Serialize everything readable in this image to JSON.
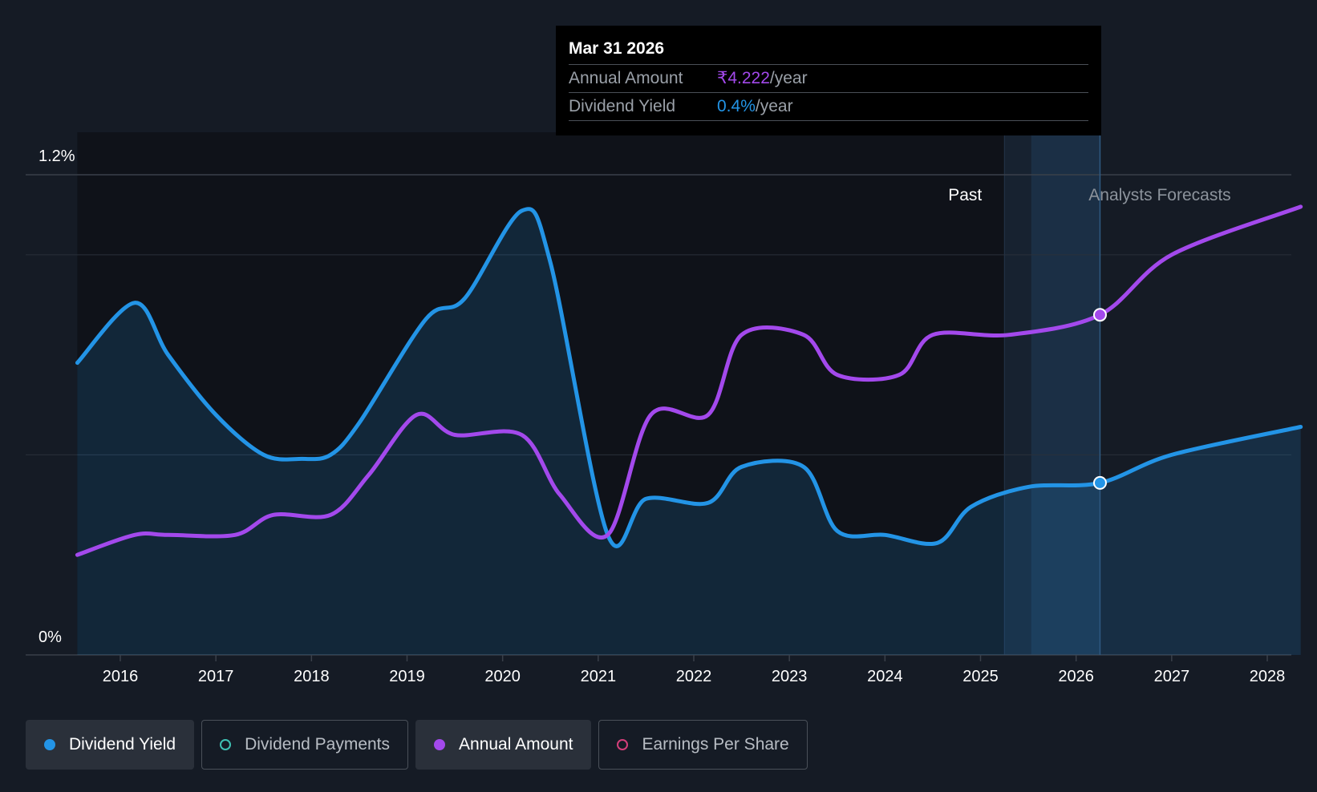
{
  "chart_data": {
    "type": "line",
    "x_range": [
      2015.1,
      2028.35
    ],
    "ylim": [
      0,
      1.2
    ],
    "y_axis_labels": [
      "1.2%",
      "0%"
    ],
    "x_ticks": [
      "2016",
      "2017",
      "2018",
      "2019",
      "2020",
      "2021",
      "2022",
      "2023",
      "2024",
      "2025",
      "2026",
      "2027",
      "2028"
    ],
    "regions": {
      "past_label": "Past",
      "forecast_label": "Analysts Forecasts",
      "past_end": 2025.25,
      "forecast_start": 2025.53,
      "cursor": 2026.25
    },
    "series": [
      {
        "name": "Dividend Yield",
        "color": "#2394e6",
        "area": true,
        "points": [
          [
            2015.55,
            0.73
          ],
          [
            2016.15,
            0.88
          ],
          [
            2016.5,
            0.75
          ],
          [
            2017.0,
            0.6
          ],
          [
            2017.5,
            0.5
          ],
          [
            2017.9,
            0.49
          ],
          [
            2018.2,
            0.5
          ],
          [
            2018.5,
            0.58
          ],
          [
            2019.2,
            0.84
          ],
          [
            2019.6,
            0.89
          ],
          [
            2020.2,
            1.11
          ],
          [
            2020.5,
            0.98
          ],
          [
            2021.1,
            0.3
          ],
          [
            2021.5,
            0.39
          ],
          [
            2022.15,
            0.38
          ],
          [
            2022.5,
            0.47
          ],
          [
            2023.15,
            0.47
          ],
          [
            2023.5,
            0.31
          ],
          [
            2024.0,
            0.3
          ],
          [
            2024.55,
            0.28
          ],
          [
            2024.9,
            0.37
          ],
          [
            2025.5,
            0.42
          ],
          [
            2026.25,
            0.43
          ],
          [
            2027.0,
            0.5
          ],
          [
            2028.35,
            0.57
          ]
        ]
      },
      {
        "name": "Annual Amount",
        "color": "#a349ec",
        "area": false,
        "points": [
          [
            2015.55,
            0.25
          ],
          [
            2016.15,
            0.3
          ],
          [
            2016.5,
            0.3
          ],
          [
            2017.2,
            0.3
          ],
          [
            2017.6,
            0.35
          ],
          [
            2018.2,
            0.35
          ],
          [
            2018.6,
            0.45
          ],
          [
            2019.1,
            0.6
          ],
          [
            2019.5,
            0.55
          ],
          [
            2020.2,
            0.55
          ],
          [
            2020.6,
            0.4
          ],
          [
            2021.1,
            0.3
          ],
          [
            2021.55,
            0.6
          ],
          [
            2022.15,
            0.6
          ],
          [
            2022.5,
            0.8
          ],
          [
            2023.15,
            0.8
          ],
          [
            2023.5,
            0.7
          ],
          [
            2024.15,
            0.7
          ],
          [
            2024.5,
            0.8
          ],
          [
            2025.3,
            0.8
          ],
          [
            2026.25,
            0.85
          ],
          [
            2027.0,
            1.0
          ],
          [
            2028.35,
            1.12
          ]
        ]
      }
    ]
  },
  "tooltip": {
    "date": "Mar 31 2026",
    "rows": [
      {
        "label": "Annual Amount",
        "value": "₹4.222",
        "unit": "/year",
        "color": "#a349ec"
      },
      {
        "label": "Dividend Yield",
        "value": "0.4%",
        "unit": "/year",
        "color": "#2394e6"
      }
    ]
  },
  "legend": [
    {
      "label": "Dividend Yield",
      "color": "#2394e6",
      "active": true,
      "filled": true
    },
    {
      "label": "Dividend Payments",
      "color": "#3fc0b3",
      "active": false,
      "filled": false
    },
    {
      "label": "Annual Amount",
      "color": "#a349ec",
      "active": true,
      "filled": true
    },
    {
      "label": "Earnings Per Share",
      "color": "#d43f7a",
      "active": false,
      "filled": false
    }
  ]
}
